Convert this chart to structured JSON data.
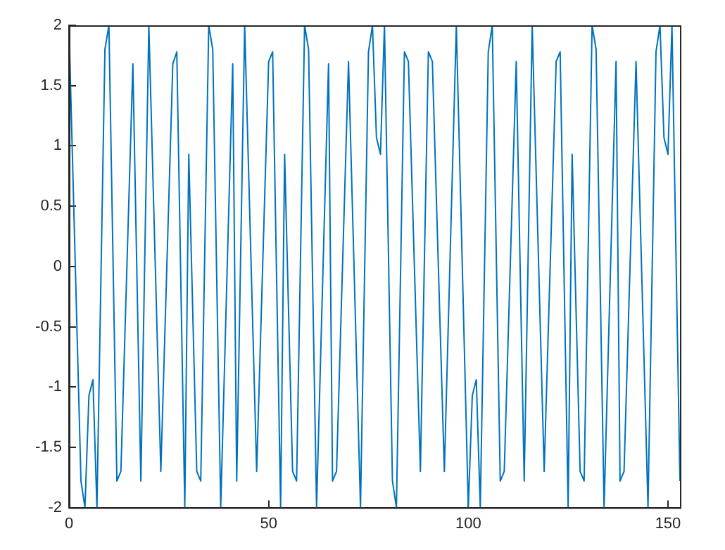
{
  "chart_data": {
    "type": "line",
    "x": [
      0,
      3,
      4,
      5,
      6,
      7,
      9,
      10,
      12,
      13,
      16,
      18,
      20,
      23,
      26,
      27,
      29,
      30,
      32,
      33,
      35,
      36,
      38,
      41,
      42,
      44,
      47,
      50,
      51,
      53,
      54,
      56,
      57,
      59,
      60,
      62,
      65,
      66,
      67,
      70,
      73,
      75,
      76,
      77,
      78,
      79,
      81,
      82,
      84,
      85,
      88,
      90,
      91,
      94,
      97,
      100,
      101,
      102,
      103,
      105,
      106,
      108,
      109,
      112,
      114,
      116,
      119,
      122,
      123,
      125,
      126,
      128,
      129,
      131,
      132,
      134,
      137,
      138,
      139,
      142,
      145,
      147,
      148,
      149,
      150,
      151,
      153
    ],
    "series": [
      {
        "color": "#0072bd",
        "values": [
          2,
          -1.78,
          -2,
          -1.07,
          -0.94,
          -2,
          1.8,
          2,
          -1.78,
          -1.7,
          1.68,
          -1.78,
          2,
          -1.7,
          1.68,
          1.78,
          -2,
          0.93,
          -1.7,
          -1.78,
          2,
          1.8,
          -2,
          1.68,
          -1.78,
          2,
          -1.7,
          1.7,
          1.78,
          -2,
          0.93,
          -1.7,
          -1.78,
          2,
          1.8,
          -2,
          1.68,
          -1.78,
          -1.7,
          1.7,
          -2,
          1.78,
          2,
          1.07,
          0.93,
          2,
          -1.78,
          -2,
          1.78,
          1.7,
          -1.7,
          1.78,
          1.7,
          -1.7,
          2,
          -2,
          -1.07,
          -0.94,
          -2,
          1.78,
          2,
          -1.78,
          -1.7,
          1.7,
          -1.78,
          2,
          -1.7,
          1.7,
          1.78,
          -2,
          0.93,
          -1.7,
          -1.78,
          2,
          1.8,
          -2,
          1.7,
          -1.78,
          -1.7,
          1.7,
          -2,
          1.78,
          2,
          1.07,
          0.93,
          2,
          -1.78
        ]
      }
    ],
    "xlim": [
      0,
      153
    ],
    "xticks": [
      0,
      50,
      100,
      150
    ],
    "ylim": [
      -2,
      2
    ],
    "yticks": [
      -2,
      -1.5,
      -1,
      -0.5,
      0,
      0.5,
      1,
      1.5,
      2
    ],
    "grid": false,
    "legend": false,
    "marker": "none",
    "line_style": "solid"
  }
}
